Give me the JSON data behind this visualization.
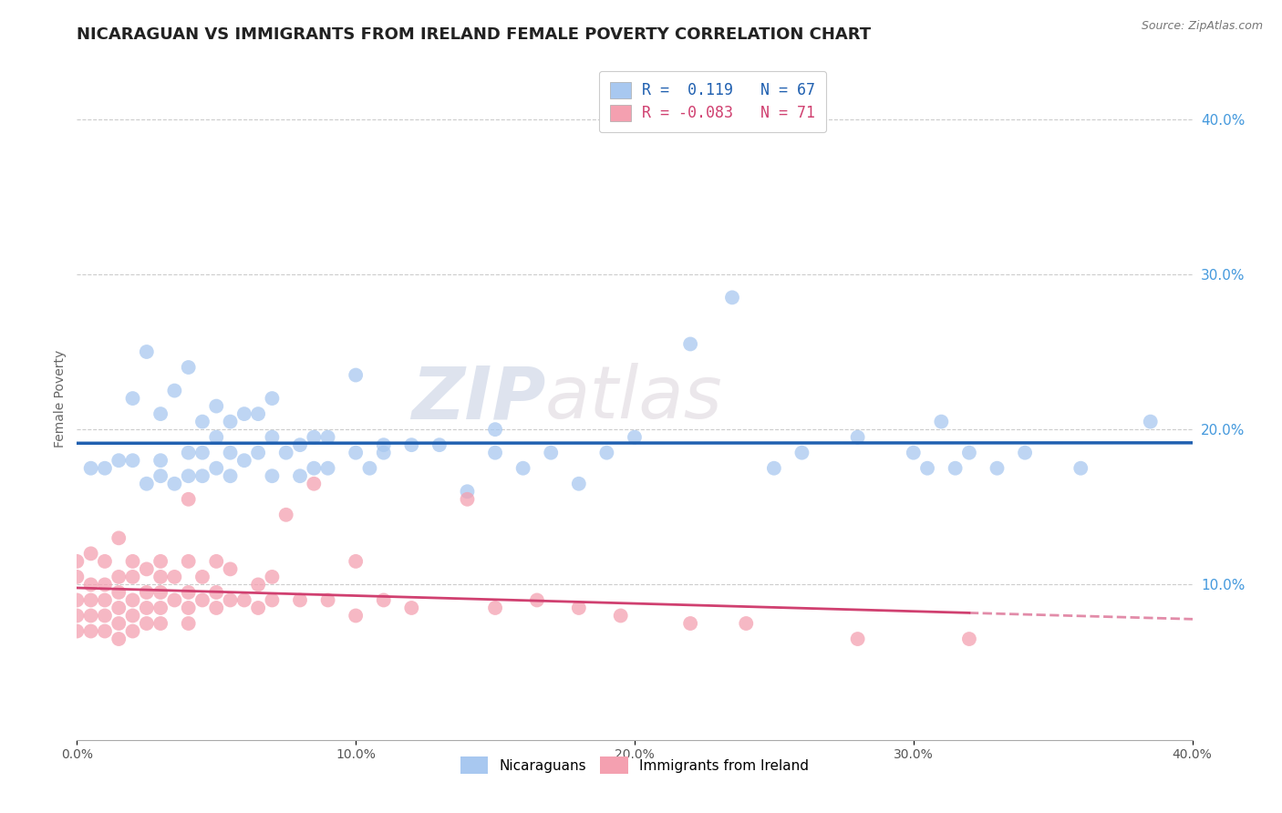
{
  "title": "NICARAGUAN VS IMMIGRANTS FROM IRELAND FEMALE POVERTY CORRELATION CHART",
  "source": "Source: ZipAtlas.com",
  "ylabel": "Female Poverty",
  "xlim": [
    0.0,
    0.4
  ],
  "ylim": [
    0.0,
    0.44
  ],
  "xtick_labels": [
    "0.0%",
    "",
    "10.0%",
    "",
    "20.0%",
    "",
    "30.0%",
    "",
    "40.0%"
  ],
  "xtick_vals": [
    0.0,
    0.05,
    0.1,
    0.15,
    0.2,
    0.25,
    0.3,
    0.35,
    0.4
  ],
  "ytick_labels": [
    "10.0%",
    "20.0%",
    "30.0%",
    "40.0%"
  ],
  "ytick_vals": [
    0.1,
    0.2,
    0.3,
    0.4
  ],
  "nicaraguan_R": 0.119,
  "nicaraguan_N": 67,
  "ireland_R": -0.083,
  "ireland_N": 71,
  "color_blue": "#A8C8F0",
  "color_pink": "#F4A0B0",
  "line_color_blue": "#2060B0",
  "line_color_pink": "#D04070",
  "background_color": "#FFFFFF",
  "watermark": "ZIPatlas",
  "nicaraguan_x": [
    0.005,
    0.01,
    0.015,
    0.02,
    0.02,
    0.025,
    0.025,
    0.03,
    0.03,
    0.03,
    0.035,
    0.035,
    0.04,
    0.04,
    0.04,
    0.045,
    0.045,
    0.045,
    0.05,
    0.05,
    0.05,
    0.055,
    0.055,
    0.055,
    0.06,
    0.06,
    0.065,
    0.065,
    0.07,
    0.07,
    0.07,
    0.075,
    0.08,
    0.08,
    0.085,
    0.085,
    0.09,
    0.09,
    0.1,
    0.1,
    0.105,
    0.11,
    0.11,
    0.12,
    0.13,
    0.14,
    0.15,
    0.15,
    0.16,
    0.17,
    0.18,
    0.19,
    0.2,
    0.22,
    0.235,
    0.25,
    0.26,
    0.28,
    0.3,
    0.305,
    0.31,
    0.315,
    0.32,
    0.33,
    0.34,
    0.36,
    0.385
  ],
  "nicaraguan_y": [
    0.175,
    0.175,
    0.18,
    0.18,
    0.22,
    0.165,
    0.25,
    0.17,
    0.18,
    0.21,
    0.165,
    0.225,
    0.17,
    0.185,
    0.24,
    0.17,
    0.185,
    0.205,
    0.175,
    0.195,
    0.215,
    0.17,
    0.185,
    0.205,
    0.18,
    0.21,
    0.185,
    0.21,
    0.17,
    0.195,
    0.22,
    0.185,
    0.17,
    0.19,
    0.175,
    0.195,
    0.175,
    0.195,
    0.185,
    0.235,
    0.175,
    0.19,
    0.185,
    0.19,
    0.19,
    0.16,
    0.185,
    0.2,
    0.175,
    0.185,
    0.165,
    0.185,
    0.195,
    0.255,
    0.285,
    0.175,
    0.185,
    0.195,
    0.185,
    0.175,
    0.205,
    0.175,
    0.185,
    0.175,
    0.185,
    0.175,
    0.205
  ],
  "ireland_x": [
    0.0,
    0.0,
    0.0,
    0.0,
    0.0,
    0.005,
    0.005,
    0.005,
    0.005,
    0.005,
    0.01,
    0.01,
    0.01,
    0.01,
    0.01,
    0.015,
    0.015,
    0.015,
    0.015,
    0.015,
    0.015,
    0.02,
    0.02,
    0.02,
    0.02,
    0.02,
    0.025,
    0.025,
    0.025,
    0.025,
    0.03,
    0.03,
    0.03,
    0.03,
    0.03,
    0.035,
    0.035,
    0.04,
    0.04,
    0.04,
    0.04,
    0.04,
    0.045,
    0.045,
    0.05,
    0.05,
    0.05,
    0.055,
    0.055,
    0.06,
    0.065,
    0.065,
    0.07,
    0.07,
    0.075,
    0.08,
    0.085,
    0.09,
    0.1,
    0.1,
    0.11,
    0.12,
    0.14,
    0.15,
    0.165,
    0.18,
    0.195,
    0.22,
    0.24,
    0.28,
    0.32
  ],
  "ireland_y": [
    0.07,
    0.08,
    0.09,
    0.105,
    0.115,
    0.07,
    0.08,
    0.09,
    0.1,
    0.12,
    0.07,
    0.08,
    0.09,
    0.1,
    0.115,
    0.065,
    0.075,
    0.085,
    0.095,
    0.105,
    0.13,
    0.07,
    0.08,
    0.09,
    0.105,
    0.115,
    0.075,
    0.085,
    0.095,
    0.11,
    0.075,
    0.085,
    0.095,
    0.105,
    0.115,
    0.09,
    0.105,
    0.075,
    0.085,
    0.095,
    0.115,
    0.155,
    0.09,
    0.105,
    0.085,
    0.095,
    0.115,
    0.09,
    0.11,
    0.09,
    0.085,
    0.1,
    0.09,
    0.105,
    0.145,
    0.09,
    0.165,
    0.09,
    0.08,
    0.115,
    0.09,
    0.085,
    0.155,
    0.085,
    0.09,
    0.085,
    0.08,
    0.075,
    0.075,
    0.065,
    0.065
  ],
  "grid_color": "#CCCCCC",
  "title_fontsize": 13,
  "axis_fontsize": 10,
  "legend_fontsize": 11,
  "marker_size": 130
}
